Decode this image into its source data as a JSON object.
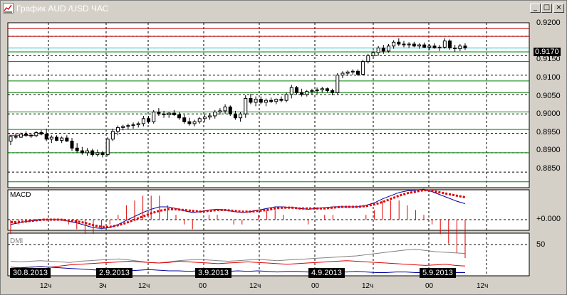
{
  "window": {
    "title": "График AUD /USD  ЧАС",
    "controls": {
      "minimize": "_",
      "maximize": "□",
      "close": "×"
    }
  },
  "colors": {
    "background": "#d4d0c8",
    "panel": "#ffffff",
    "resistance_line": "#c00000",
    "support_line": "#008000",
    "current_line": "#00c0c0",
    "macd_line": "#0000a0",
    "signal_line": "#e00000",
    "dmi_adx": "#808080",
    "dmi_plus": "#e00000",
    "dmi_minus": "#0000a0"
  },
  "price_axis": {
    "labels": [
      "0.9200",
      "0.9150",
      "0.9100",
      "0.9050",
      "0.9000",
      "0.8950",
      "0.8900",
      "0.8850"
    ],
    "current_price": "0.9170"
  },
  "macd_panel": {
    "label": "MACD",
    "zero_label": "+0.000"
  },
  "dmi_panel": {
    "label": "DMI",
    "level_label": "50"
  },
  "date_tags": [
    "30.8.2013",
    "2.9.2013",
    "3.9.2013",
    "4.9.2013",
    "5.9.2013"
  ],
  "time_labels": [
    "12ч",
    "3ч",
    "12ч",
    "00",
    "12ч",
    "00",
    "12ч",
    "00",
    "12ч"
  ],
  "chart_data": {
    "type": "candlestick",
    "title": "График AUD /USD  ЧАС",
    "ylim": [
      0.881,
      0.9235
    ],
    "horizontal_levels": [
      {
        "value": 0.922,
        "kind": "resistance"
      },
      {
        "value": 0.92,
        "kind": "resistance"
      },
      {
        "value": 0.917,
        "kind": "current"
      },
      {
        "value": 0.916,
        "kind": "support"
      },
      {
        "value": 0.9135,
        "kind": "support"
      },
      {
        "value": 0.9085,
        "kind": "support"
      },
      {
        "value": 0.9055,
        "kind": "support"
      },
      {
        "value": 0.9005,
        "kind": "support"
      },
      {
        "value": 0.896,
        "kind": "support"
      },
      {
        "value": 0.89,
        "kind": "support"
      },
      {
        "value": 0.8825,
        "kind": "support"
      }
    ],
    "candles": [
      [
        0.893,
        0.8945,
        0.892,
        0.8942
      ],
      [
        0.8942,
        0.895,
        0.8935,
        0.894
      ],
      [
        0.894,
        0.8952,
        0.8938,
        0.8948
      ],
      [
        0.8948,
        0.8955,
        0.894,
        0.8945
      ],
      [
        0.8945,
        0.895,
        0.8938,
        0.8944
      ],
      [
        0.8944,
        0.8956,
        0.894,
        0.8952
      ],
      [
        0.8952,
        0.8958,
        0.8945,
        0.8948
      ],
      [
        0.8948,
        0.8962,
        0.893,
        0.8935
      ],
      [
        0.8935,
        0.8945,
        0.8925,
        0.894
      ],
      [
        0.894,
        0.8945,
        0.893,
        0.8932
      ],
      [
        0.8932,
        0.8942,
        0.8925,
        0.8938
      ],
      [
        0.8938,
        0.8945,
        0.8928,
        0.893
      ],
      [
        0.893,
        0.8938,
        0.8905,
        0.8912
      ],
      [
        0.8912,
        0.8925,
        0.89,
        0.8905
      ],
      [
        0.8905,
        0.8915,
        0.8895,
        0.89
      ],
      [
        0.89,
        0.8912,
        0.8892,
        0.8905
      ],
      [
        0.8905,
        0.891,
        0.889,
        0.8895
      ],
      [
        0.8895,
        0.8908,
        0.889,
        0.89
      ],
      [
        0.89,
        0.8905,
        0.8888,
        0.8895
      ],
      [
        0.8895,
        0.894,
        0.889,
        0.8935
      ],
      [
        0.8935,
        0.8962,
        0.893,
        0.8955
      ],
      [
        0.8955,
        0.897,
        0.8945,
        0.8965
      ],
      [
        0.8965,
        0.8972,
        0.8958,
        0.8968
      ],
      [
        0.8968,
        0.8975,
        0.896,
        0.897
      ],
      [
        0.897,
        0.8978,
        0.8962,
        0.8972
      ],
      [
        0.8972,
        0.898,
        0.8965,
        0.8975
      ],
      [
        0.8975,
        0.8995,
        0.8968,
        0.8988
      ],
      [
        0.8988,
        0.8995,
        0.8975,
        0.898
      ],
      [
        0.898,
        0.901,
        0.8975,
        0.9005
      ],
      [
        0.9005,
        0.9015,
        0.8995,
        0.9
      ],
      [
        0.9,
        0.9008,
        0.899,
        0.8998
      ],
      [
        0.8998,
        0.9005,
        0.899,
        0.9002
      ],
      [
        0.9002,
        0.901,
        0.8995,
        0.8998
      ],
      [
        0.8998,
        0.9005,
        0.8985,
        0.899
      ],
      [
        0.899,
        0.8998,
        0.8975,
        0.898
      ],
      [
        0.898,
        0.899,
        0.897,
        0.8975
      ],
      [
        0.8975,
        0.8985,
        0.8968,
        0.898
      ],
      [
        0.898,
        0.8992,
        0.8975,
        0.8988
      ],
      [
        0.8988,
        0.8998,
        0.898,
        0.8992
      ],
      [
        0.8992,
        0.9002,
        0.8985,
        0.8995
      ],
      [
        0.8995,
        0.901,
        0.8988,
        0.9005
      ],
      [
        0.9005,
        0.9015,
        0.8998,
        0.9008
      ],
      [
        0.9008,
        0.9025,
        0.9,
        0.9018
      ],
      [
        0.9018,
        0.9022,
        0.8995,
        0.9
      ],
      [
        0.9,
        0.9008,
        0.8985,
        0.899
      ],
      [
        0.899,
        0.9005,
        0.898,
        0.9
      ],
      [
        0.9,
        0.9048,
        0.899,
        0.904
      ],
      [
        0.904,
        0.9052,
        0.9025,
        0.903
      ],
      [
        0.903,
        0.9045,
        0.902,
        0.9038
      ],
      [
        0.9038,
        0.9045,
        0.9025,
        0.903
      ],
      [
        0.903,
        0.904,
        0.902,
        0.9035
      ],
      [
        0.9035,
        0.9042,
        0.9028,
        0.9032
      ],
      [
        0.9032,
        0.904,
        0.9025,
        0.9038
      ],
      [
        0.9038,
        0.9045,
        0.903,
        0.9035
      ],
      [
        0.9035,
        0.9055,
        0.903,
        0.905
      ],
      [
        0.905,
        0.9075,
        0.904,
        0.9068
      ],
      [
        0.9068,
        0.9072,
        0.905,
        0.9055
      ],
      [
        0.9055,
        0.9065,
        0.9045,
        0.905
      ],
      [
        0.905,
        0.9062,
        0.9045,
        0.9058
      ],
      [
        0.9058,
        0.9065,
        0.905,
        0.906
      ],
      [
        0.906,
        0.9068,
        0.9052,
        0.9062
      ],
      [
        0.9062,
        0.907,
        0.9055,
        0.9065
      ],
      [
        0.9065,
        0.9068,
        0.9055,
        0.906
      ],
      [
        0.906,
        0.9065,
        0.9048,
        0.9055
      ],
      [
        0.9055,
        0.9105,
        0.905,
        0.91
      ],
      [
        0.91,
        0.911,
        0.9092,
        0.9105
      ],
      [
        0.9105,
        0.9112,
        0.9098,
        0.9108
      ],
      [
        0.9108,
        0.9115,
        0.91,
        0.911
      ],
      [
        0.911,
        0.9115,
        0.9098,
        0.9102
      ],
      [
        0.9102,
        0.914,
        0.91,
        0.9135
      ],
      [
        0.9135,
        0.9155,
        0.913,
        0.915
      ],
      [
        0.915,
        0.9162,
        0.9145,
        0.9158
      ],
      [
        0.9158,
        0.9175,
        0.915,
        0.917
      ],
      [
        0.917,
        0.9178,
        0.9155,
        0.9162
      ],
      [
        0.9162,
        0.918,
        0.9158,
        0.9175
      ],
      [
        0.9175,
        0.919,
        0.9168,
        0.9185
      ],
      [
        0.9185,
        0.9195,
        0.9175,
        0.918
      ],
      [
        0.918,
        0.9188,
        0.9172,
        0.9178
      ],
      [
        0.9178,
        0.9185,
        0.917,
        0.918
      ],
      [
        0.918,
        0.9186,
        0.9172,
        0.9175
      ],
      [
        0.9175,
        0.9182,
        0.9168,
        0.9178
      ],
      [
        0.9178,
        0.9184,
        0.917,
        0.9172
      ],
      [
        0.9172,
        0.918,
        0.9165,
        0.9175
      ],
      [
        0.9175,
        0.9182,
        0.9168,
        0.917
      ],
      [
        0.917,
        0.9178,
        0.9162,
        0.9172
      ],
      [
        0.9172,
        0.9195,
        0.9168,
        0.9188
      ],
      [
        0.9188,
        0.9192,
        0.9165,
        0.917
      ],
      [
        0.917,
        0.9178,
        0.916,
        0.9168
      ],
      [
        0.9168,
        0.918,
        0.9162,
        0.9175
      ],
      [
        0.9175,
        0.9182,
        0.9165,
        0.917
      ]
    ],
    "macd": [
      -0.0006,
      -0.0004,
      -0.0002,
      -0.0001,
      0.0,
      0.0,
      0.0,
      -0.0002,
      -0.0004,
      -0.0007,
      -0.001,
      -0.0011,
      -0.001,
      -0.0006,
      -0.0001,
      0.0004,
      0.0009,
      0.0013,
      0.0016,
      0.0016,
      0.0014,
      0.0011,
      0.0009,
      0.001,
      0.0012,
      0.0013,
      0.0012,
      0.001,
      0.0009,
      0.001,
      0.0012,
      0.0014,
      0.0016,
      0.0016,
      0.0015,
      0.0014,
      0.0013,
      0.0014,
      0.0015,
      0.0016,
      0.0016,
      0.0016,
      0.0016,
      0.0018,
      0.0021,
      0.0026,
      0.003,
      0.0034,
      0.0036,
      0.0037,
      0.0038,
      0.0035,
      0.0031,
      0.0027,
      0.0023,
      0.002
    ],
    "signal": [
      -0.0003,
      -0.0003,
      -0.0002,
      -0.0001,
      0.0,
      0.0,
      0.0,
      -0.0001,
      -0.0002,
      -0.0004,
      -0.0007,
      -0.0009,
      -0.0009,
      -0.0007,
      -0.0004,
      0.0,
      0.0004,
      0.0008,
      0.0011,
      0.0013,
      0.0013,
      0.0012,
      0.0011,
      0.001,
      0.0011,
      0.0012,
      0.0012,
      0.0011,
      0.001,
      0.001,
      0.0011,
      0.0012,
      0.0014,
      0.0015,
      0.0015,
      0.0014,
      0.0014,
      0.0014,
      0.0014,
      0.0015,
      0.0016,
      0.0016,
      0.0016,
      0.0017,
      0.0019,
      0.0022,
      0.0026,
      0.003,
      0.0033,
      0.0035,
      0.0037,
      0.0036,
      0.0034,
      0.0032,
      0.003,
      0.0028
    ],
    "dmi_adx": [
      22,
      21,
      22,
      23,
      22,
      21,
      20,
      22,
      23,
      24,
      25,
      26,
      24,
      22,
      20,
      19,
      21,
      23,
      24,
      25,
      24,
      23,
      22,
      23,
      24,
      25,
      24,
      23,
      24,
      25,
      26,
      27,
      28,
      29,
      30,
      31,
      33,
      35,
      37,
      39,
      41,
      42,
      40,
      38,
      37,
      36,
      35
    ],
    "dmi_plus": [
      12,
      11,
      12,
      13,
      12,
      14,
      16,
      17,
      18,
      19,
      20,
      21,
      22,
      21,
      20,
      19,
      20,
      22,
      21,
      20,
      19,
      18,
      19,
      20,
      21,
      20,
      19,
      18,
      17,
      18,
      19,
      20,
      21,
      22,
      23,
      22,
      21,
      20,
      19,
      18,
      17,
      16,
      15,
      16,
      17,
      15,
      14
    ],
    "dmi_minus": [
      10,
      11,
      12,
      13,
      12,
      11,
      10,
      9,
      8,
      7,
      7,
      6,
      6,
      7,
      8,
      7,
      6,
      6,
      5,
      6,
      7,
      6,
      5,
      6,
      5,
      6,
      5,
      4,
      5,
      5,
      4,
      4,
      5,
      4,
      4,
      5,
      4,
      3,
      3,
      4,
      4,
      3,
      3,
      2,
      3,
      3,
      3
    ],
    "x_dates": [
      "30.8.2013",
      "2.9.2013",
      "3.9.2013",
      "4.9.2013",
      "5.9.2013"
    ]
  }
}
